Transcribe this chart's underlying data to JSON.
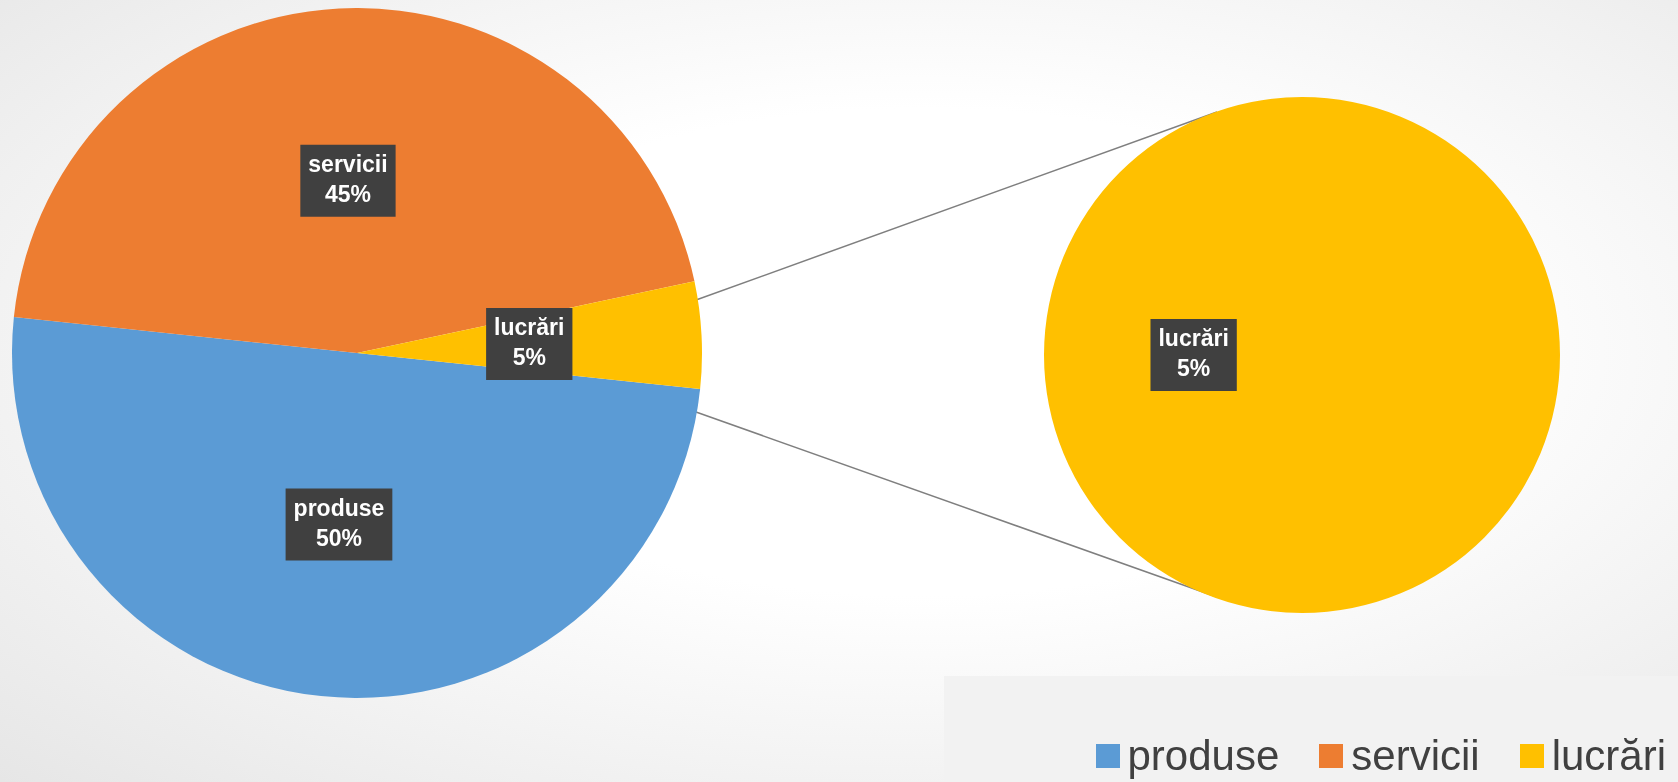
{
  "chart_data": [
    {
      "type": "pie",
      "categories": [
        "produse",
        "servicii",
        "lucrări"
      ],
      "values": [
        50,
        45,
        5
      ],
      "value_labels": [
        "50%",
        "45%",
        "5%"
      ],
      "colors": [
        "#5b9bd5",
        "#ed7d31",
        "#ffc000"
      ],
      "legend": "bottom right"
    },
    {
      "type": "pie",
      "categories": [
        "lucrări"
      ],
      "values": [
        5
      ],
      "value_labels": [
        "5%"
      ],
      "colors": [
        "#ffc000"
      ]
    }
  ]
}
